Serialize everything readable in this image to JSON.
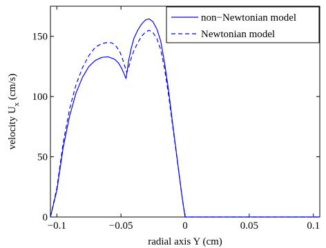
{
  "chart_data": {
    "type": "line",
    "title": "",
    "xlabel": "radial axis Y (cm)",
    "ylabel_main": "velocity U",
    "ylabel_sub": "x",
    "ylabel_unit": " (cm/s)",
    "xlim": [
      -0.105,
      0.105
    ],
    "ylim": [
      0,
      175
    ],
    "x_ticks": [
      -0.1,
      -0.05,
      0,
      0.05,
      0.1
    ],
    "x_tick_labels": [
      "−0.1",
      "−0.05",
      "0",
      "0.05",
      "0.1"
    ],
    "y_ticks": [
      0,
      50,
      100,
      150
    ],
    "y_tick_labels": [
      "0",
      "50",
      "100",
      "150"
    ],
    "grid": false,
    "legend_position": "top-right",
    "series": [
      {
        "name": "non−Newtonian model",
        "style": "solid",
        "color": "#0000ff",
        "points": [
          [
            -0.105,
            0
          ],
          [
            -0.1,
            22
          ],
          [
            -0.095,
            58
          ],
          [
            -0.09,
            84
          ],
          [
            -0.085,
            103
          ],
          [
            -0.08,
            116
          ],
          [
            -0.075,
            125
          ],
          [
            -0.07,
            130
          ],
          [
            -0.065,
            132.5
          ],
          [
            -0.06,
            133
          ],
          [
            -0.055,
            131
          ],
          [
            -0.052,
            128
          ],
          [
            -0.05,
            124.5
          ],
          [
            -0.048,
            120
          ],
          [
            -0.0465,
            116
          ],
          [
            -0.046,
            115
          ],
          [
            -0.044,
            130
          ],
          [
            -0.042,
            140
          ],
          [
            -0.04,
            148
          ],
          [
            -0.037,
            155
          ],
          [
            -0.034,
            160
          ],
          [
            -0.031,
            163.5
          ],
          [
            -0.028,
            164.5
          ],
          [
            -0.025,
            162
          ],
          [
            -0.022,
            156
          ],
          [
            -0.019,
            146
          ],
          [
            -0.016,
            128
          ],
          [
            -0.013,
            106
          ],
          [
            -0.01,
            80
          ],
          [
            -0.007,
            55
          ],
          [
            -0.004,
            30
          ],
          [
            -0.002,
            14
          ],
          [
            0,
            0
          ],
          [
            0.105,
            0
          ]
        ]
      },
      {
        "name": "Newtonian model",
        "style": "dashed",
        "color": "#0000ff",
        "points": [
          [
            -0.105,
            0
          ],
          [
            -0.1,
            24
          ],
          [
            -0.095,
            62
          ],
          [
            -0.09,
            90
          ],
          [
            -0.085,
            110
          ],
          [
            -0.08,
            124
          ],
          [
            -0.075,
            134
          ],
          [
            -0.07,
            141
          ],
          [
            -0.065,
            144
          ],
          [
            -0.06,
            145
          ],
          [
            -0.057,
            144.5
          ],
          [
            -0.054,
            142
          ],
          [
            -0.051,
            137.5
          ],
          [
            -0.049,
            132
          ],
          [
            -0.047,
            125
          ],
          [
            -0.0455,
            120
          ],
          [
            -0.044,
            124
          ],
          [
            -0.042,
            132
          ],
          [
            -0.04,
            138
          ],
          [
            -0.037,
            144.5
          ],
          [
            -0.034,
            150
          ],
          [
            -0.031,
            153.5
          ],
          [
            -0.028,
            155
          ],
          [
            -0.025,
            153
          ],
          [
            -0.022,
            148
          ],
          [
            -0.019,
            139
          ],
          [
            -0.016,
            123
          ],
          [
            -0.013,
            102
          ],
          [
            -0.01,
            78
          ],
          [
            -0.007,
            54
          ],
          [
            -0.004,
            30
          ],
          [
            -0.002,
            14
          ],
          [
            0,
            0
          ],
          [
            0.105,
            0
          ]
        ]
      }
    ]
  }
}
